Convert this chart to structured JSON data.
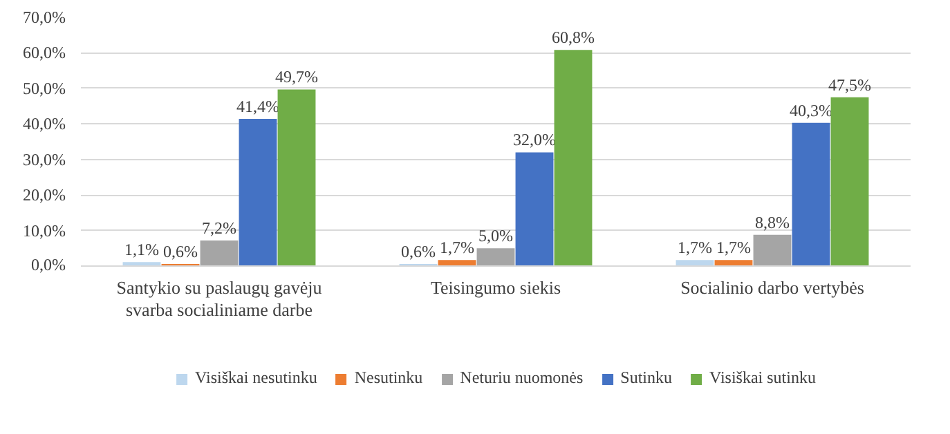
{
  "chart_data": {
    "type": "bar",
    "categories": [
      "Santykio su paslaugų gavėju svarba socialiniame darbe",
      "Teisingumo siekis",
      "Socialinio darbo vertybės"
    ],
    "series": [
      {
        "name": "Visiškai nesutinku",
        "color": "#bdd7ee",
        "values": [
          1.1,
          0.6,
          1.7
        ],
        "value_labels": [
          "1,1%",
          "0,6%",
          "1,7%"
        ]
      },
      {
        "name": "Nesutinku",
        "color": "#ed7d31",
        "values": [
          0.6,
          1.7,
          1.7
        ],
        "value_labels": [
          "0,6%",
          "1,7%",
          "1,7%"
        ]
      },
      {
        "name": "Neturiu nuomonės",
        "color": "#a5a5a5",
        "values": [
          7.2,
          5.0,
          8.8
        ],
        "value_labels": [
          "7,2%",
          "5,0%",
          "8,8%"
        ]
      },
      {
        "name": "Sutinku",
        "color": "#4472c4",
        "values": [
          41.4,
          32.0,
          40.3
        ],
        "value_labels": [
          "41,4%",
          "32,0%",
          "40,3%"
        ]
      },
      {
        "name": "Visiškai sutinku",
        "color": "#70ad47",
        "values": [
          49.7,
          60.8,
          47.5
        ],
        "value_labels": [
          "49,7%",
          "60,8%",
          "47,5%"
        ]
      }
    ],
    "ylim": [
      0,
      70
    ],
    "yticks": [
      {
        "value": 0,
        "label": "0,0%"
      },
      {
        "value": 10,
        "label": "10,0%"
      },
      {
        "value": 20,
        "label": "20,0%"
      },
      {
        "value": 30,
        "label": "30,0%"
      },
      {
        "value": 40,
        "label": "40,0%"
      },
      {
        "value": 50,
        "label": "50,0%"
      },
      {
        "value": 60,
        "label": "60,0%"
      },
      {
        "value": 70,
        "label": "70,0%"
      }
    ],
    "grid": "y",
    "legend": "bottom"
  }
}
